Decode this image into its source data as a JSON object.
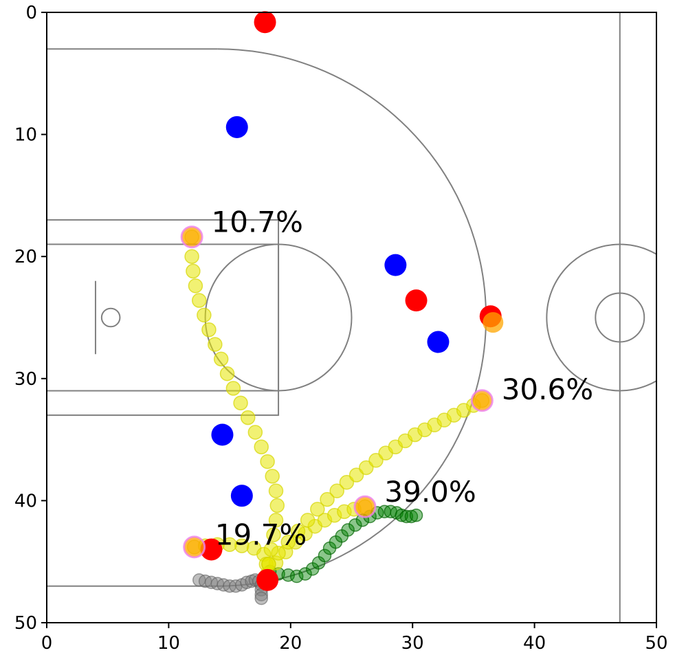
{
  "chart_data": {
    "type": "scatter",
    "title": "",
    "xlabel": "",
    "ylabel": "",
    "xlim": [
      0,
      50
    ],
    "ylim": [
      50,
      0
    ],
    "y_inverted": true,
    "grid": false,
    "x_ticks": [
      0,
      10,
      20,
      30,
      40,
      50
    ],
    "y_ticks": [
      0,
      10,
      20,
      30,
      40,
      50
    ],
    "colors": {
      "court_lines": "#808080",
      "team_red": "#ff0000",
      "team_blue": "#0000ff",
      "ball": "#ffa500",
      "pass_trail": "#e6e600",
      "player_trail": "#008000",
      "defender_trail": "#808080",
      "target_ring": "#ee82ee"
    },
    "court_lines": [
      {
        "kind": "line",
        "points": [
          [
            0,
            3
          ],
          [
            14,
            3
          ]
        ]
      },
      {
        "kind": "arc",
        "center": [
          4,
          25
        ],
        "radius": 22,
        "from": [
          14,
          3
        ],
        "to": [
          14,
          47
        ]
      },
      {
        "kind": "line",
        "points": [
          [
            0,
            47
          ],
          [
            14,
            47
          ]
        ]
      },
      {
        "kind": "rect",
        "x0": 0,
        "y0": 17,
        "x1": 19,
        "y1": 33
      },
      {
        "kind": "rect",
        "x0": 0,
        "y0": 19,
        "x1": 19,
        "y1": 31
      },
      {
        "kind": "circle",
        "center": [
          19,
          25
        ],
        "radius": 6
      },
      {
        "kind": "line",
        "points": [
          [
            4,
            22
          ],
          [
            4,
            28
          ]
        ]
      },
      {
        "kind": "circle",
        "center": [
          5.25,
          25
        ],
        "radius": 0.75
      },
      {
        "kind": "line",
        "points": [
          [
            47,
            0
          ],
          [
            47,
            50
          ]
        ]
      },
      {
        "kind": "circle",
        "center": [
          47,
          25
        ],
        "radius": 6
      },
      {
        "kind": "circle",
        "center": [
          47,
          25
        ],
        "radius": 2
      }
    ],
    "series": [
      {
        "role": "team_red",
        "points": [
          [
            17.9,
            0.8
          ],
          [
            30.3,
            23.6
          ],
          [
            36.4,
            24.9
          ],
          [
            13.5,
            44.0
          ],
          [
            18.1,
            46.5
          ]
        ]
      },
      {
        "role": "team_blue",
        "points": [
          [
            15.6,
            9.4
          ],
          [
            28.6,
            20.7
          ],
          [
            32.1,
            27.0
          ],
          [
            14.4,
            34.6
          ],
          [
            16.0,
            39.6
          ]
        ]
      },
      {
        "role": "ball",
        "points": [
          [
            36.6,
            25.4
          ],
          [
            26.1,
            40.5
          ],
          [
            12.1,
            43.8
          ],
          [
            11.9,
            18.4
          ],
          [
            35.7,
            31.8
          ]
        ]
      },
      {
        "role": "defender_trail",
        "points": [
          [
            12.5,
            46.5
          ],
          [
            13.0,
            46.6
          ],
          [
            13.5,
            46.7
          ],
          [
            14.0,
            46.8
          ],
          [
            14.5,
            46.9
          ],
          [
            15.0,
            47.0
          ],
          [
            15.5,
            47.0
          ],
          [
            16.0,
            46.9
          ],
          [
            16.4,
            46.7
          ],
          [
            16.8,
            46.6
          ],
          [
            17.1,
            46.5
          ],
          [
            17.4,
            46.6
          ],
          [
            17.6,
            46.9
          ],
          [
            17.6,
            47.3
          ],
          [
            17.6,
            47.7
          ],
          [
            17.6,
            48.0
          ]
        ]
      },
      {
        "role": "player_trail",
        "points": [
          [
            18.3,
            45.8
          ],
          [
            19.0,
            46.0
          ],
          [
            19.8,
            46.1
          ],
          [
            20.5,
            46.2
          ],
          [
            21.2,
            46.0
          ],
          [
            21.8,
            45.6
          ],
          [
            22.3,
            45.1
          ],
          [
            22.8,
            44.5
          ],
          [
            23.2,
            43.9
          ],
          [
            23.7,
            43.4
          ],
          [
            24.2,
            42.9
          ],
          [
            24.7,
            42.4
          ],
          [
            25.3,
            42.0
          ],
          [
            25.9,
            41.6
          ],
          [
            26.5,
            41.3
          ],
          [
            27.1,
            41.0
          ],
          [
            27.7,
            40.9
          ],
          [
            28.2,
            40.9
          ],
          [
            28.7,
            41.0
          ],
          [
            29.1,
            41.2
          ],
          [
            29.5,
            41.3
          ],
          [
            29.9,
            41.3
          ],
          [
            30.3,
            41.2
          ]
        ]
      },
      {
        "role": "pass_trail",
        "points": [
          [
            12.1,
            43.8
          ],
          [
            13.0,
            43.7
          ],
          [
            14.0,
            43.6
          ],
          [
            15.0,
            43.6
          ],
          [
            16.0,
            43.7
          ],
          [
            17.0,
            43.9
          ],
          [
            17.8,
            44.4
          ],
          [
            18.0,
            45.2
          ],
          [
            18.1,
            46.0
          ],
          [
            18.8,
            45.1
          ],
          [
            19.6,
            44.2
          ],
          [
            20.4,
            43.4
          ],
          [
            21.2,
            42.7
          ],
          [
            22.0,
            42.1
          ],
          [
            22.8,
            41.6
          ],
          [
            23.6,
            41.2
          ],
          [
            24.4,
            40.9
          ],
          [
            25.2,
            40.7
          ],
          [
            26.1,
            40.5
          ],
          [
            18.2,
            45.2
          ],
          [
            19.0,
            44.3
          ],
          [
            19.8,
            43.4
          ],
          [
            20.6,
            42.5
          ],
          [
            21.4,
            41.6
          ],
          [
            22.2,
            40.7
          ],
          [
            23.0,
            39.9
          ],
          [
            23.8,
            39.2
          ],
          [
            24.6,
            38.5
          ],
          [
            25.4,
            37.9
          ],
          [
            26.2,
            37.3
          ],
          [
            27.0,
            36.7
          ],
          [
            27.8,
            36.1
          ],
          [
            28.6,
            35.6
          ],
          [
            29.4,
            35.1
          ],
          [
            30.2,
            34.6
          ],
          [
            31.0,
            34.2
          ],
          [
            31.8,
            33.8
          ],
          [
            32.6,
            33.4
          ],
          [
            33.4,
            33.0
          ],
          [
            34.2,
            32.6
          ],
          [
            35.0,
            32.2
          ],
          [
            35.7,
            31.8
          ],
          [
            18.2,
            45.2
          ],
          [
            18.4,
            44.0
          ],
          [
            18.6,
            42.8
          ],
          [
            18.8,
            41.6
          ],
          [
            18.9,
            40.4
          ],
          [
            18.8,
            39.2
          ],
          [
            18.5,
            38.0
          ],
          [
            18.1,
            36.8
          ],
          [
            17.6,
            35.6
          ],
          [
            17.1,
            34.4
          ],
          [
            16.5,
            33.2
          ],
          [
            15.9,
            32.0
          ],
          [
            15.3,
            30.8
          ],
          [
            14.8,
            29.6
          ],
          [
            14.3,
            28.4
          ],
          [
            13.8,
            27.2
          ],
          [
            13.3,
            26.0
          ],
          [
            12.9,
            24.8
          ],
          [
            12.5,
            23.6
          ],
          [
            12.2,
            22.4
          ],
          [
            12.0,
            21.2
          ],
          [
            11.9,
            20.0
          ],
          [
            11.9,
            18.4
          ]
        ]
      }
    ],
    "targets": [
      {
        "x": 11.9,
        "y": 18.4,
        "label": "10.7%"
      },
      {
        "x": 35.7,
        "y": 31.8,
        "label": "30.6%"
      },
      {
        "x": 26.1,
        "y": 40.5,
        "label": "39.0%"
      },
      {
        "x": 12.1,
        "y": 43.8,
        "label": "19.7%"
      }
    ],
    "annotations": [
      {
        "text": "10.7%",
        "x": 13.5,
        "y": 18.0
      },
      {
        "text": "30.6%",
        "x": 37.3,
        "y": 31.7
      },
      {
        "text": "39.0%",
        "x": 27.7,
        "y": 40.1
      },
      {
        "text": "19.7%",
        "x": 13.8,
        "y": 43.6
      }
    ]
  }
}
